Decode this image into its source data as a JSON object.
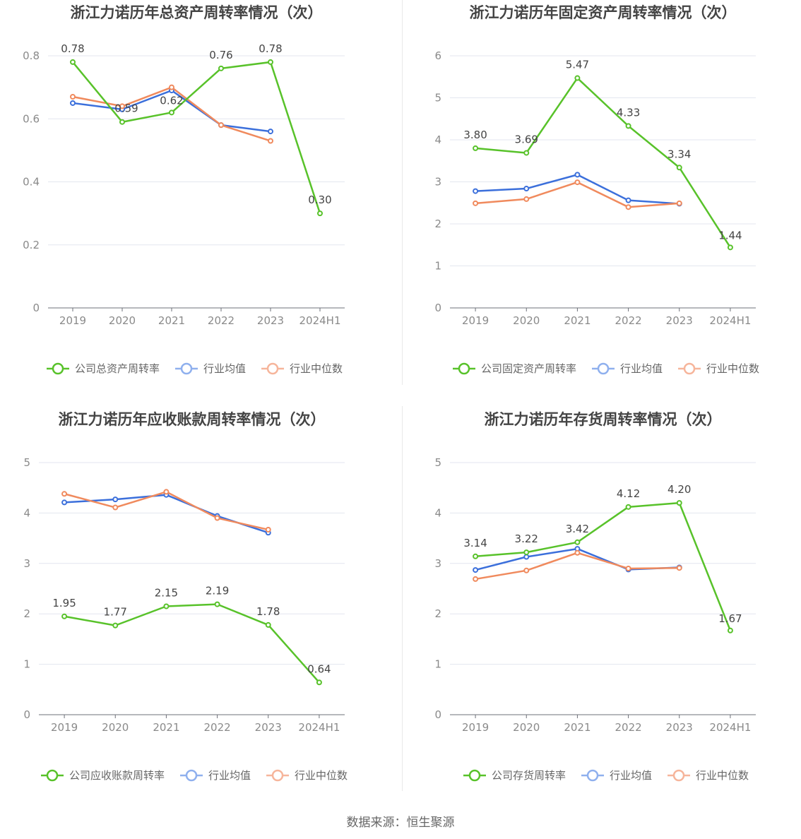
{
  "chart_data": [
    {
      "type": "line",
      "title": "浙江力诺历年总资产周转率情况（次）",
      "categories": [
        "2019",
        "2020",
        "2021",
        "2022",
        "2023",
        "2024H1"
      ],
      "ylim": [
        0,
        0.8
      ],
      "yticks": [
        0,
        0.2,
        0.4,
        0.6,
        0.8
      ],
      "ytick_labels": [
        "0",
        "0.2",
        "0.4",
        "0.6",
        "0.8"
      ],
      "series": [
        {
          "name": "公司总资产周转率",
          "color": "#58c22a",
          "values": [
            0.78,
            0.59,
            0.62,
            0.76,
            0.78,
            0.3
          ],
          "labels": [
            "0.78",
            "0.59",
            "0.62",
            "0.76",
            "0.78",
            "0.30"
          ]
        },
        {
          "name": "行业均值",
          "color": "#3b6fdb",
          "values": [
            0.65,
            0.63,
            0.69,
            0.58,
            0.56,
            null
          ]
        },
        {
          "name": "行业中位数",
          "color": "#f08a5d",
          "values": [
            0.67,
            0.64,
            0.7,
            0.58,
            0.53,
            null
          ]
        }
      ]
    },
    {
      "type": "line",
      "title": "浙江力诺历年固定资产周转率情况（次）",
      "categories": [
        "2019",
        "2020",
        "2021",
        "2022",
        "2023",
        "2024H1"
      ],
      "ylim": [
        0,
        6
      ],
      "yticks": [
        0,
        1,
        2,
        3,
        4,
        5,
        6
      ],
      "ytick_labels": [
        "0",
        "1",
        "2",
        "3",
        "4",
        "5",
        "6"
      ],
      "series": [
        {
          "name": "公司固定资产周转率",
          "color": "#58c22a",
          "values": [
            3.8,
            3.69,
            5.47,
            4.33,
            3.34,
            1.44
          ],
          "labels": [
            "3.80",
            "3.69",
            "5.47",
            "4.33",
            "3.34",
            "1.44"
          ]
        },
        {
          "name": "行业均值",
          "color": "#3b6fdb",
          "values": [
            2.78,
            2.84,
            3.17,
            2.56,
            2.48,
            null
          ]
        },
        {
          "name": "行业中位数",
          "color": "#f08a5d",
          "values": [
            2.49,
            2.59,
            2.99,
            2.4,
            2.49,
            null
          ]
        }
      ]
    },
    {
      "type": "line",
      "title": "浙江力诺历年应收账款周转率情况（次）",
      "categories": [
        "2019",
        "2020",
        "2021",
        "2022",
        "2023",
        "2024H1"
      ],
      "ylim": [
        0,
        5
      ],
      "yticks": [
        0,
        1,
        2,
        3,
        4,
        5
      ],
      "ytick_labels": [
        "0",
        "1",
        "2",
        "3",
        "4",
        "5"
      ],
      "series": [
        {
          "name": "公司应收账款周转率",
          "color": "#58c22a",
          "values": [
            1.95,
            1.77,
            2.15,
            2.19,
            1.78,
            0.64
          ],
          "labels": [
            "1.95",
            "1.77",
            "2.15",
            "2.19",
            "1.78",
            "0.64"
          ]
        },
        {
          "name": "行业均值",
          "color": "#3b6fdb",
          "values": [
            4.21,
            4.27,
            4.36,
            3.94,
            3.61,
            null
          ]
        },
        {
          "name": "行业中位数",
          "color": "#f08a5d",
          "values": [
            4.38,
            4.11,
            4.42,
            3.9,
            3.67,
            null
          ]
        }
      ]
    },
    {
      "type": "line",
      "title": "浙江力诺历年存货周转率情况（次）",
      "categories": [
        "2019",
        "2020",
        "2021",
        "2022",
        "2023",
        "2024H1"
      ],
      "ylim": [
        0,
        5
      ],
      "yticks": [
        0,
        1,
        2,
        3,
        4,
        5
      ],
      "ytick_labels": [
        "0",
        "1",
        "2",
        "3",
        "4",
        "5"
      ],
      "series": [
        {
          "name": "公司存货周转率",
          "color": "#58c22a",
          "values": [
            3.14,
            3.22,
            3.42,
            4.12,
            4.2,
            1.67
          ],
          "labels": [
            "3.14",
            "3.22",
            "3.42",
            "4.12",
            "4.20",
            "1.67"
          ]
        },
        {
          "name": "行业均值",
          "color": "#3b6fdb",
          "values": [
            2.87,
            3.13,
            3.29,
            2.88,
            2.92,
            null
          ]
        },
        {
          "name": "行业中位数",
          "color": "#f08a5d",
          "values": [
            2.69,
            2.86,
            3.21,
            2.9,
            2.91,
            null
          ]
        }
      ]
    }
  ],
  "source": "数据来源：恒生聚源"
}
